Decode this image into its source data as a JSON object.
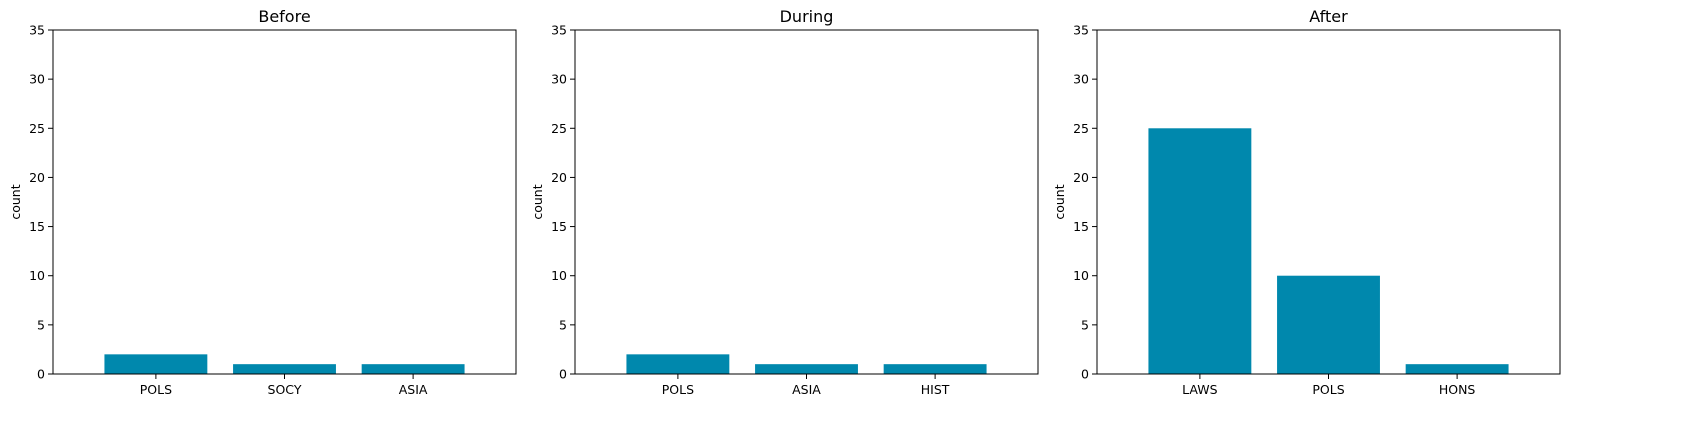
{
  "bar_color": "#0088ad",
  "chart_data": [
    {
      "type": "bar",
      "title": "Before",
      "ylabel": "count",
      "xlabel": "",
      "ylim": [
        0,
        35
      ],
      "yticks": [
        0,
        5,
        10,
        15,
        20,
        25,
        30,
        35
      ],
      "categories": [
        "POLS",
        "SOCY",
        "ASIA"
      ],
      "values": [
        2,
        1,
        1
      ],
      "grid": false
    },
    {
      "type": "bar",
      "title": "During",
      "ylabel": "count",
      "xlabel": "",
      "ylim": [
        0,
        35
      ],
      "yticks": [
        0,
        5,
        10,
        15,
        20,
        25,
        30,
        35
      ],
      "categories": [
        "POLS",
        "ASIA",
        "HIST"
      ],
      "values": [
        2,
        1,
        1
      ],
      "grid": false
    },
    {
      "type": "bar",
      "title": "After",
      "ylabel": "count",
      "xlabel": "",
      "ylim": [
        0,
        35
      ],
      "yticks": [
        0,
        5,
        10,
        15,
        20,
        25,
        30,
        35
      ],
      "categories": [
        "LAWS",
        "POLS",
        "HONS"
      ],
      "values": [
        25,
        10,
        1
      ],
      "grid": false
    }
  ]
}
